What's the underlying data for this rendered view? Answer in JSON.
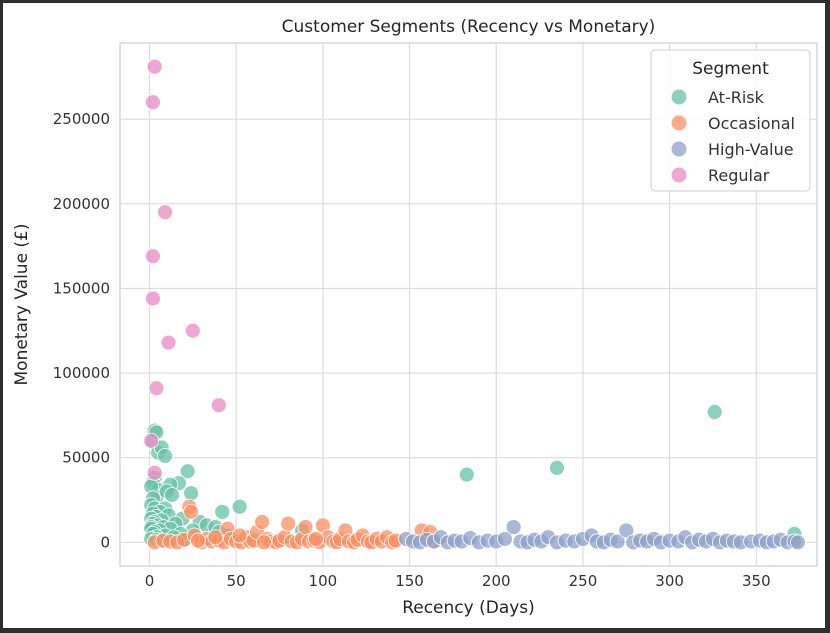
{
  "chart_data": {
    "type": "scatter",
    "title": "Customer Segments (Recency vs Monetary)",
    "xlabel": "Recency (Days)",
    "ylabel": "Monetary Value (£)",
    "xlim": [
      -17,
      385
    ],
    "ylim": [
      -14000,
      295000
    ],
    "xticks": [
      0,
      50,
      100,
      150,
      200,
      250,
      300,
      350
    ],
    "yticks": [
      0,
      50000,
      100000,
      150000,
      200000,
      250000
    ],
    "grid": true,
    "legend": {
      "title": "Segment",
      "placement": "top-right"
    },
    "series": [
      {
        "name": "At-Risk",
        "color": "#66c2a5",
        "points": [
          [
            2,
            59000
          ],
          [
            3,
            66000
          ],
          [
            4,
            65000
          ],
          [
            5,
            53000
          ],
          [
            7,
            56000
          ],
          [
            9,
            51000
          ],
          [
            22,
            42000
          ],
          [
            24,
            29000
          ],
          [
            3,
            38000
          ],
          [
            2,
            35000
          ],
          [
            5,
            31000
          ],
          [
            4,
            27000
          ],
          [
            17,
            35000
          ],
          [
            12,
            34000
          ],
          [
            1,
            33000
          ],
          [
            10,
            30000
          ],
          [
            2,
            26000
          ],
          [
            13,
            28000
          ],
          [
            1,
            22000
          ],
          [
            3,
            20000
          ],
          [
            9,
            20000
          ],
          [
            6,
            18000
          ],
          [
            2,
            17000
          ],
          [
            11,
            16000
          ],
          [
            4,
            15000
          ],
          [
            1,
            14000
          ],
          [
            19,
            14000
          ],
          [
            7,
            13000
          ],
          [
            3,
            12000
          ],
          [
            29,
            12000
          ],
          [
            2,
            11000
          ],
          [
            15,
            11000
          ],
          [
            5,
            10000
          ],
          [
            33,
            10000
          ],
          [
            1,
            9000
          ],
          [
            8,
            9000
          ],
          [
            42,
            18000
          ],
          [
            52,
            21000
          ],
          [
            38,
            9000
          ],
          [
            1,
            8000
          ],
          [
            12,
            8000
          ],
          [
            6,
            7000
          ],
          [
            25,
            7000
          ],
          [
            3,
            6000
          ],
          [
            40,
            6000
          ],
          [
            2,
            5000
          ],
          [
            18,
            5000
          ],
          [
            9,
            4000
          ],
          [
            4,
            3000
          ],
          [
            14,
            3000
          ],
          [
            1,
            2000
          ],
          [
            4,
            1500
          ],
          [
            7,
            1000
          ],
          [
            20,
            1000
          ],
          [
            45,
            4000
          ],
          [
            88,
            7000
          ],
          [
            183,
            40000
          ],
          [
            235,
            44000
          ],
          [
            326,
            77000
          ],
          [
            372,
            5000
          ]
        ]
      },
      {
        "name": "Occasional",
        "color": "#fc8d62",
        "points": [
          [
            3,
            0
          ],
          [
            8,
            1000
          ],
          [
            12,
            500
          ],
          [
            16,
            0
          ],
          [
            20,
            1500
          ],
          [
            23,
            21000
          ],
          [
            24,
            18000
          ],
          [
            26,
            4000
          ],
          [
            30,
            0
          ],
          [
            33,
            2000
          ],
          [
            36,
            500
          ],
          [
            40,
            1000
          ],
          [
            43,
            0
          ],
          [
            45,
            8000
          ],
          [
            47,
            2000
          ],
          [
            50,
            500
          ],
          [
            53,
            0
          ],
          [
            56,
            3000
          ],
          [
            58,
            500
          ],
          [
            60,
            1000
          ],
          [
            62,
            6000
          ],
          [
            65,
            12000
          ],
          [
            68,
            2000
          ],
          [
            70,
            500
          ],
          [
            73,
            0
          ],
          [
            75,
            1000
          ],
          [
            78,
            3000
          ],
          [
            80,
            11000
          ],
          [
            82,
            500
          ],
          [
            85,
            0
          ],
          [
            88,
            2000
          ],
          [
            90,
            9000
          ],
          [
            92,
            500
          ],
          [
            95,
            1000
          ],
          [
            98,
            0
          ],
          [
            100,
            10000
          ],
          [
            103,
            3000
          ],
          [
            106,
            500
          ],
          [
            108,
            0
          ],
          [
            110,
            2000
          ],
          [
            113,
            7000
          ],
          [
            115,
            500
          ],
          [
            118,
            0
          ],
          [
            120,
            1500
          ],
          [
            123,
            4000
          ],
          [
            126,
            500
          ],
          [
            128,
            0
          ],
          [
            131,
            2000
          ],
          [
            134,
            500
          ],
          [
            137,
            3000
          ],
          [
            140,
            0
          ],
          [
            142,
            1000
          ],
          [
            157,
            7000
          ],
          [
            162,
            6000
          ],
          [
            165,
            500
          ],
          [
            28,
            1000
          ],
          [
            38,
            3000
          ],
          [
            52,
            4000
          ],
          [
            66,
            0
          ],
          [
            96,
            2000
          ]
        ]
      },
      {
        "name": "High-Value",
        "color": "#8da0cb",
        "points": [
          [
            148,
            2000
          ],
          [
            152,
            500
          ],
          [
            156,
            0
          ],
          [
            160,
            1500
          ],
          [
            164,
            500
          ],
          [
            168,
            3000
          ],
          [
            172,
            0
          ],
          [
            176,
            1000
          ],
          [
            180,
            500
          ],
          [
            185,
            2500
          ],
          [
            190,
            0
          ],
          [
            195,
            1000
          ],
          [
            200,
            500
          ],
          [
            205,
            2000
          ],
          [
            210,
            9000
          ],
          [
            214,
            500
          ],
          [
            218,
            0
          ],
          [
            222,
            1500
          ],
          [
            226,
            500
          ],
          [
            230,
            3000
          ],
          [
            235,
            0
          ],
          [
            240,
            1000
          ],
          [
            245,
            500
          ],
          [
            250,
            2000
          ],
          [
            255,
            4000
          ],
          [
            258,
            500
          ],
          [
            262,
            0
          ],
          [
            266,
            1500
          ],
          [
            270,
            500
          ],
          [
            275,
            7000
          ],
          [
            279,
            0
          ],
          [
            283,
            1000
          ],
          [
            287,
            500
          ],
          [
            291,
            2000
          ],
          [
            295,
            0
          ],
          [
            300,
            1000
          ],
          [
            305,
            500
          ],
          [
            309,
            3000
          ],
          [
            313,
            0
          ],
          [
            317,
            1500
          ],
          [
            321,
            500
          ],
          [
            325,
            2000
          ],
          [
            329,
            0
          ],
          [
            333,
            1000
          ],
          [
            337,
            500
          ],
          [
            341,
            0
          ],
          [
            347,
            500
          ],
          [
            352,
            1000
          ],
          [
            356,
            0
          ],
          [
            360,
            500
          ],
          [
            364,
            1500
          ],
          [
            368,
            0
          ],
          [
            372,
            500
          ],
          [
            374,
            0
          ]
        ]
      },
      {
        "name": "Regular",
        "color": "#e78ac3",
        "points": [
          [
            3,
            281000
          ],
          [
            2,
            260000
          ],
          [
            9,
            195000
          ],
          [
            2,
            169000
          ],
          [
            2,
            144000
          ],
          [
            25,
            125000
          ],
          [
            11,
            118000
          ],
          [
            4,
            91000
          ],
          [
            40,
            81000
          ],
          [
            1,
            60000
          ],
          [
            3,
            41000
          ]
        ]
      }
    ]
  }
}
